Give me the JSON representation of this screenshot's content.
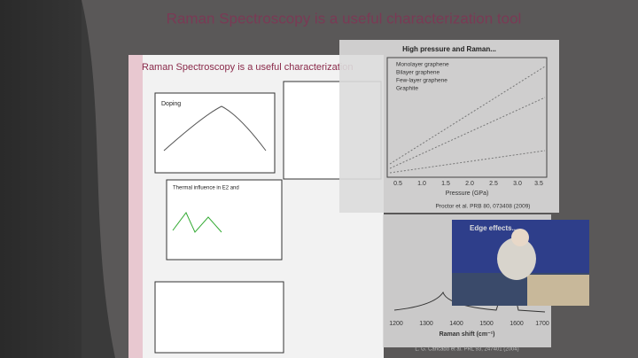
{
  "slide": {
    "title": "Raman Spectroscopy is a useful characterization tool"
  },
  "inset_slide": {
    "title": "Raman Spectroscopy is a useful characterization"
  },
  "doping_panel": {
    "title": "Doping"
  },
  "thermal_panel": {
    "title": "Thermal influence in E2 and"
  },
  "pressure_panel": {
    "title": "High pressure and Raman...",
    "legend": [
      "Monolayer graphene",
      "Bilayer graphene",
      "Few-layer graphene",
      "Graphite"
    ],
    "x_label": "Pressure (GPa)",
    "x_ticks": [
      "0.5",
      "1.0",
      "1.5",
      "2.0",
      "2.5",
      "3.0",
      "3.5"
    ],
    "citation": "Proctor et al. PRB 80, 073408 (2009)"
  },
  "edge_panel": {
    "title": "Edge effects...",
    "x_label": "Raman shift (cm⁻¹)",
    "x_ticks": [
      "1200",
      "1300",
      "1400",
      "1500",
      "1600",
      "1700"
    ],
    "citation": "L. G. Cancado et al. PRL 93, 247401 (2004)"
  }
}
